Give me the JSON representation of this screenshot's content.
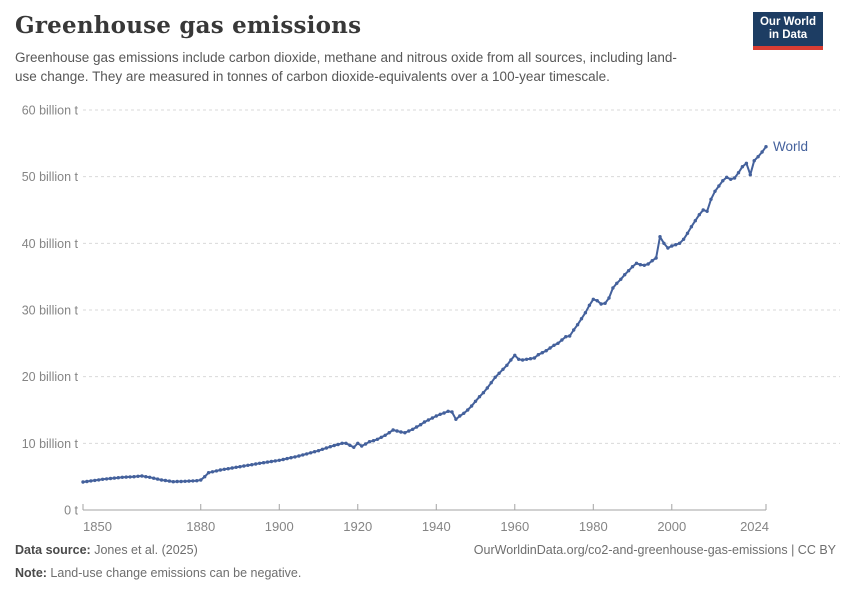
{
  "header": {
    "title": "Greenhouse gas emissions",
    "subtitle": "Greenhouse gas emissions include carbon dioxide, methane and nitrous oxide from all sources, including land-use change. They are measured in tonnes of carbon dioxide-equivalents over a 100-year timescale.",
    "logo": {
      "line1": "Our World",
      "line2": "in Data",
      "bg_color": "#1d3d63",
      "stripe_color": "#d93d33"
    }
  },
  "chart_data": {
    "type": "line",
    "title": "Greenhouse gas emissions",
    "xlabel": "",
    "ylabel": "",
    "xlim": [
      1850,
      2024
    ],
    "ylim": [
      0,
      60
    ],
    "grid": "horizontal-dashed",
    "legend_position": "end-of-line-label",
    "x_ticks": [
      1850,
      1880,
      1900,
      1920,
      1940,
      1960,
      1980,
      2000,
      2024
    ],
    "y_ticks": [
      {
        "value": 0,
        "label": "0 t"
      },
      {
        "value": 10,
        "label": "10 billion t"
      },
      {
        "value": 20,
        "label": "20 billion t"
      },
      {
        "value": 30,
        "label": "30 billion t"
      },
      {
        "value": 40,
        "label": "40 billion t"
      },
      {
        "value": 50,
        "label": "50 billion t"
      },
      {
        "value": 60,
        "label": "60 billion t"
      }
    ],
    "unit": "tonnes of CO2-equivalents",
    "series": [
      {
        "name": "World",
        "color": "#44619c",
        "x": [
          1850,
          1851,
          1852,
          1853,
          1854,
          1855,
          1856,
          1857,
          1858,
          1859,
          1860,
          1861,
          1862,
          1863,
          1864,
          1865,
          1866,
          1867,
          1868,
          1869,
          1870,
          1871,
          1872,
          1873,
          1874,
          1875,
          1876,
          1877,
          1878,
          1879,
          1880,
          1881,
          1882,
          1883,
          1884,
          1885,
          1886,
          1887,
          1888,
          1889,
          1890,
          1891,
          1892,
          1893,
          1894,
          1895,
          1896,
          1897,
          1898,
          1899,
          1900,
          1901,
          1902,
          1903,
          1904,
          1905,
          1906,
          1907,
          1908,
          1909,
          1910,
          1911,
          1912,
          1913,
          1914,
          1915,
          1916,
          1917,
          1918,
          1919,
          1920,
          1921,
          1922,
          1923,
          1924,
          1925,
          1926,
          1927,
          1928,
          1929,
          1930,
          1931,
          1932,
          1933,
          1934,
          1935,
          1936,
          1937,
          1938,
          1939,
          1940,
          1941,
          1942,
          1943,
          1944,
          1945,
          1946,
          1947,
          1948,
          1949,
          1950,
          1951,
          1952,
          1953,
          1954,
          1955,
          1956,
          1957,
          1958,
          1959,
          1960,
          1961,
          1962,
          1963,
          1964,
          1965,
          1966,
          1967,
          1968,
          1969,
          1970,
          1971,
          1972,
          1973,
          1974,
          1975,
          1976,
          1977,
          1978,
          1979,
          1980,
          1981,
          1982,
          1983,
          1984,
          1985,
          1986,
          1987,
          1988,
          1989,
          1990,
          1991,
          1992,
          1993,
          1994,
          1995,
          1996,
          1997,
          1998,
          1999,
          2000,
          2001,
          2002,
          2003,
          2004,
          2005,
          2006,
          2007,
          2008,
          2009,
          2010,
          2011,
          2012,
          2013,
          2014,
          2015,
          2016,
          2017,
          2018,
          2019,
          2020,
          2021,
          2022,
          2023,
          2024
        ],
        "values": [
          4.2,
          4.28,
          4.36,
          4.44,
          4.52,
          4.6,
          4.66,
          4.72,
          4.78,
          4.84,
          4.9,
          4.93,
          4.97,
          5.0,
          5.05,
          5.1,
          5.0,
          4.9,
          4.77,
          4.63,
          4.5,
          4.42,
          4.33,
          4.25,
          4.27,
          4.28,
          4.3,
          4.33,
          4.37,
          4.4,
          4.5,
          5.0,
          5.6,
          5.73,
          5.87,
          6.0,
          6.1,
          6.2,
          6.3,
          6.4,
          6.5,
          6.6,
          6.7,
          6.8,
          6.9,
          7.0,
          7.09,
          7.18,
          7.27,
          7.36,
          7.45,
          7.58,
          7.71,
          7.84,
          7.97,
          8.1,
          8.26,
          8.42,
          8.58,
          8.74,
          8.9,
          9.1,
          9.3,
          9.5,
          9.67,
          9.83,
          10.0,
          10.0,
          9.7,
          9.4,
          10.0,
          9.6,
          9.9,
          10.25,
          10.4,
          10.6,
          10.9,
          11.2,
          11.6,
          12.0,
          11.85,
          11.7,
          11.6,
          11.85,
          12.1,
          12.45,
          12.8,
          13.2,
          13.5,
          13.8,
          14.1,
          14.35,
          14.55,
          14.8,
          14.7,
          13.6,
          14.1,
          14.5,
          15.0,
          15.6,
          16.3,
          17.0,
          17.6,
          18.3,
          19.1,
          19.9,
          20.5,
          21.1,
          21.7,
          22.5,
          23.2,
          22.6,
          22.5,
          22.6,
          22.7,
          22.8,
          23.3,
          23.6,
          23.9,
          24.3,
          24.7,
          25.0,
          25.5,
          26.0,
          26.1,
          27.0,
          27.8,
          28.7,
          29.6,
          30.7,
          31.6,
          31.4,
          30.9,
          31.0,
          31.8,
          33.3,
          34.0,
          34.6,
          35.3,
          35.9,
          36.5,
          37.0,
          36.8,
          36.7,
          36.9,
          37.4,
          37.8,
          41.0,
          40.0,
          39.3,
          39.6,
          39.8,
          40.0,
          40.6,
          41.5,
          42.5,
          43.4,
          44.3,
          45.0,
          44.8,
          46.6,
          47.8,
          48.6,
          49.4,
          49.9,
          49.6,
          49.8,
          50.6,
          51.5,
          52.0,
          50.3,
          52.4,
          53.0,
          53.7,
          54.5
        ]
      }
    ]
  },
  "footer": {
    "source_label": "Data source:",
    "source_value": " Jones et al. (2025)",
    "attribution": "OurWorldinData.org/co2-and-greenhouse-gas-emissions | CC BY",
    "note_label": "Note:",
    "note_value": " Land-use change emissions can be negative."
  }
}
